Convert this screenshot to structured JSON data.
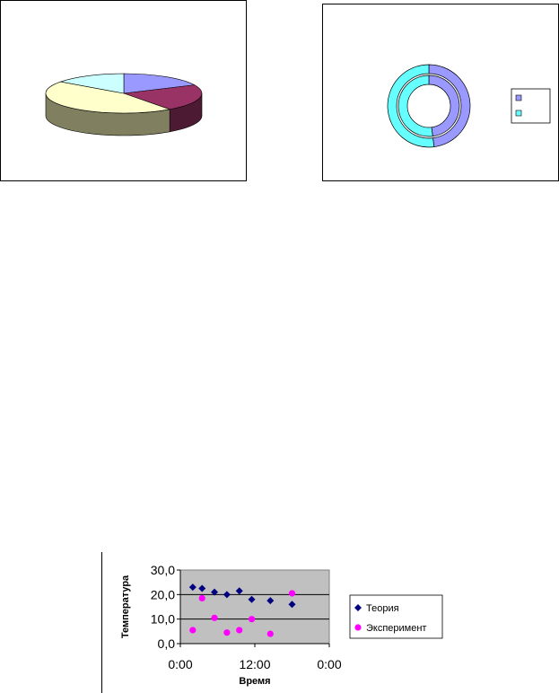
{
  "chart_data": [
    {
      "type": "pie",
      "variant": "3d",
      "title": "",
      "slices": [
        {
          "value": 18,
          "color": "#9999ff"
        },
        {
          "value": 22,
          "color": "#993366"
        },
        {
          "value": 45,
          "color": "#ffffcc"
        },
        {
          "value": 15,
          "color": "#ccffff"
        }
      ],
      "side_colors": [
        "#4a4a99",
        "#4d1a33",
        "#808060",
        "#5a8080"
      ]
    },
    {
      "type": "donut",
      "title": "",
      "rings": [
        {
          "segments": [
            {
              "value": 48,
              "color": "#9999ff"
            },
            {
              "value": 52,
              "color": "#66ffff"
            }
          ]
        },
        {
          "segments": [
            {
              "value": 48,
              "color": "#9999ff"
            },
            {
              "value": 52,
              "color": "#66ffff"
            }
          ]
        }
      ],
      "legend": {
        "placement": "right",
        "entries": [
          {
            "name": "",
            "color": "#9999ff"
          },
          {
            "name": "",
            "color": "#66ffff"
          }
        ]
      }
    },
    {
      "type": "scatter",
      "xlabel": "Время",
      "ylabel": "Температура",
      "xlim": [
        0,
        24
      ],
      "ylim": [
        0,
        30
      ],
      "x_ticks": [
        0,
        12,
        24
      ],
      "x_tick_labels": [
        "0:00",
        "12:00",
        "0:00"
      ],
      "y_ticks": [
        0,
        10,
        20,
        30
      ],
      "y_tick_labels": [
        "0,0",
        "10,0",
        "20,0",
        "30,0"
      ],
      "grid": true,
      "plot_background": "#c0c0c0",
      "legend": {
        "placement": "right"
      },
      "series": [
        {
          "name": "Теория",
          "marker": "diamond",
          "color": "#000080",
          "x": [
            2,
            3.5,
            5.5,
            7.5,
            9.5,
            11.5,
            14.5,
            18
          ],
          "y": [
            23,
            22.5,
            21,
            20,
            21.5,
            18,
            17.5,
            16
          ]
        },
        {
          "name": "Эксперимент",
          "marker": "circle",
          "color": "#ff00ff",
          "x": [
            2,
            3.5,
            5.5,
            7.5,
            9.5,
            11.5,
            14.5,
            18
          ],
          "y": [
            5.5,
            18.5,
            10.5,
            4.5,
            5.5,
            10,
            4,
            20.5
          ]
        }
      ]
    }
  ]
}
